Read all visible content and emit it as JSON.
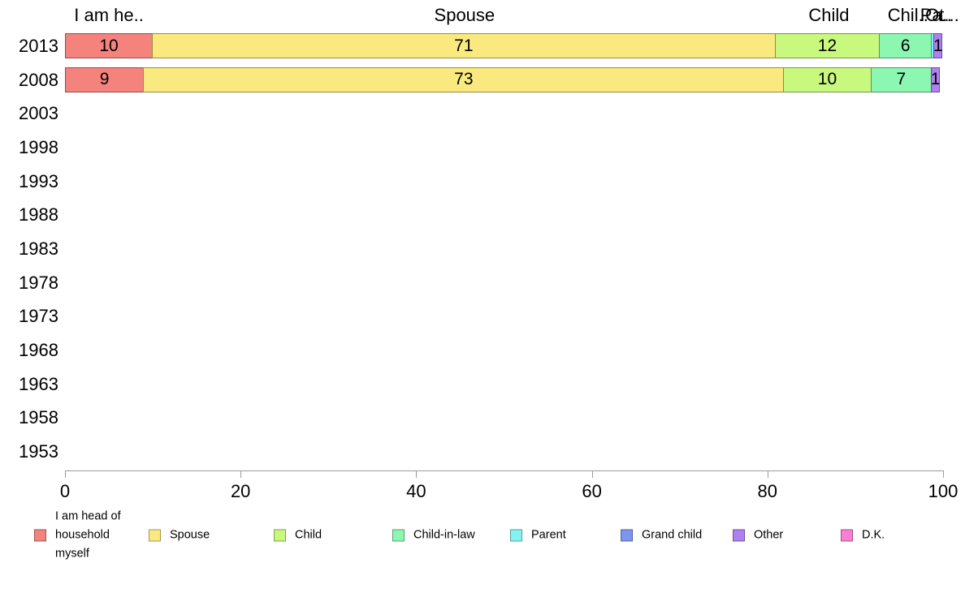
{
  "chart_data": {
    "type": "bar",
    "orientation": "horizontal",
    "stacked": true,
    "title": "",
    "xlabel": "",
    "ylabel": "",
    "xlim": [
      0,
      100
    ],
    "xticks": [
      "0",
      "20",
      "40",
      "60",
      "80",
      "100"
    ],
    "grid": false,
    "legend_position": "bottom",
    "categories": [
      "2013",
      "2008",
      "2003",
      "1998",
      "1993",
      "1988",
      "1983",
      "1978",
      "1973",
      "1968",
      "1963",
      "1958",
      "1953"
    ],
    "series": [
      {
        "name": "I am head of household myself",
        "color": "#f4837d",
        "values": [
          10,
          9,
          0,
          0,
          0,
          0,
          0,
          0,
          0,
          0,
          0,
          0,
          0
        ]
      },
      {
        "name": "Spouse",
        "color": "#fae97e",
        "values": [
          71,
          73,
          0,
          0,
          0,
          0,
          0,
          0,
          0,
          0,
          0,
          0,
          0
        ]
      },
      {
        "name": "Child",
        "color": "#c9f87e",
        "values": [
          12,
          10,
          0,
          0,
          0,
          0,
          0,
          0,
          0,
          0,
          0,
          0,
          0
        ]
      },
      {
        "name": "Child-in-law",
        "color": "#8bf7b1",
        "values": [
          6,
          7,
          0,
          0,
          0,
          0,
          0,
          0,
          0,
          0,
          0,
          0,
          0
        ]
      },
      {
        "name": "Parent",
        "color": "#85f2f2",
        "values": [
          0.4,
          0,
          0,
          0,
          0,
          0,
          0,
          0,
          0,
          0,
          0,
          0,
          0
        ]
      },
      {
        "name": "Grand child",
        "color": "#7e95ee",
        "values": [
          0,
          0,
          0,
          0,
          0,
          0,
          0,
          0,
          0,
          0,
          0,
          0,
          0
        ]
      },
      {
        "name": "Other",
        "color": "#ae80f1",
        "values": [
          1,
          1,
          0,
          0,
          0,
          0,
          0,
          0,
          0,
          0,
          0,
          0,
          0
        ]
      },
      {
        "name": "D.K.",
        "color": "#f97fd4",
        "values": [
          0,
          0,
          0,
          0,
          0,
          0,
          0,
          0,
          0,
          0,
          0,
          0,
          0
        ]
      }
    ],
    "bar_value_labels": {
      "2013": [
        10,
        71,
        12,
        6,
        1
      ],
      "2008": [
        9,
        73,
        10,
        7,
        1
      ]
    },
    "column_headers": [
      {
        "text": "I am he..",
        "series_index": 0
      },
      {
        "text": "Spouse",
        "series_index": 1
      },
      {
        "text": "Child",
        "series_index": 2
      },
      {
        "text": "Chil..",
        "series_index": 3
      },
      {
        "text": "Pa..",
        "series_index": 4
      },
      {
        "text": "Ot...",
        "series_index": 6
      }
    ],
    "legend_labels": [
      "I am head of household myself",
      "Spouse",
      "Child",
      "Child-in-law",
      "Parent",
      "Grand child",
      "Other",
      "D.K."
    ]
  }
}
